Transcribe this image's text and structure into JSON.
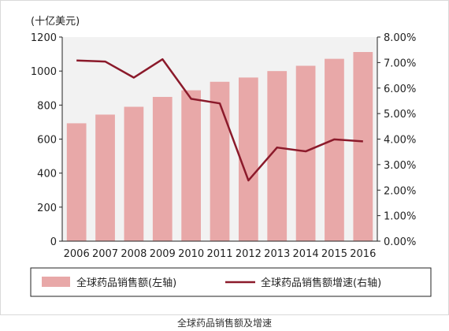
{
  "chart_data": {
    "type": "bar",
    "unit_label": "(十亿美元)",
    "categories": [
      "2006",
      "2007",
      "2008",
      "2009",
      "2010",
      "2011",
      "2012",
      "2013",
      "2014",
      "2015",
      "2016"
    ],
    "series": [
      {
        "name": "全球药品销售额(左轴)",
        "type": "bar",
        "axis": "left",
        "color": "#e8a8a8",
        "values": [
          693,
          744,
          790,
          848,
          887,
          937,
          962,
          1000,
          1031,
          1072,
          1112
        ]
      },
      {
        "name": "全球药品销售额增速(右轴)",
        "type": "line",
        "axis": "right",
        "color": "#8b1a2b",
        "values": [
          7.08,
          7.04,
          6.41,
          7.13,
          5.58,
          5.4,
          2.38,
          3.67,
          3.52,
          3.99,
          3.91
        ]
      }
    ],
    "y_left": {
      "min": 0,
      "max": 1200,
      "ticks": [
        "0",
        "200",
        "400",
        "600",
        "800",
        "1000",
        "1200"
      ]
    },
    "y_right": {
      "min": 0,
      "max": 8,
      "ticks": [
        "0.00%",
        "1.00%",
        "2.00%",
        "3.00%",
        "4.00%",
        "5.00%",
        "6.00%",
        "7.00%",
        "8.00%"
      ]
    },
    "grid": false,
    "legend_position": "bottom"
  },
  "caption": "全球药品销售额及增速"
}
